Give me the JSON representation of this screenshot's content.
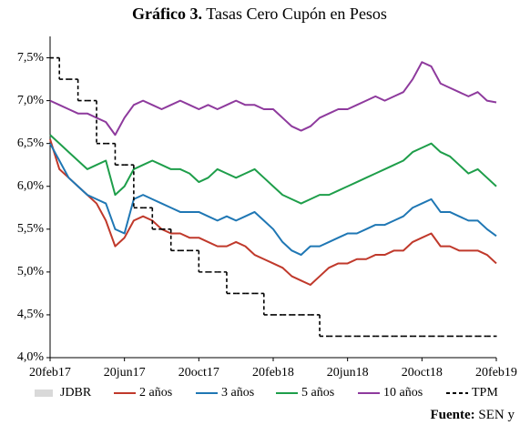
{
  "chart_data": {
    "type": "line",
    "title_label": "Gráfico 3.",
    "title": "Tasas Cero Cupón en Pesos",
    "source_label": "Fuente:",
    "source": "SEN y",
    "categories": [
      "20feb17",
      null,
      null,
      null,
      null,
      null,
      null,
      null,
      "20jun17",
      null,
      null,
      null,
      null,
      null,
      null,
      null,
      "20oct17",
      null,
      null,
      null,
      null,
      null,
      null,
      null,
      "20feb18",
      null,
      null,
      null,
      null,
      null,
      null,
      null,
      "20jun18",
      null,
      null,
      null,
      null,
      null,
      null,
      null,
      "20oct18",
      null,
      null,
      null,
      null,
      null,
      null,
      null,
      "20feb19"
    ],
    "ylim": [
      4,
      7.75
    ],
    "yticks": [
      {
        "value": 4,
        "label": "4,0%"
      },
      {
        "value": 4.5,
        "label": "4,5%"
      },
      {
        "value": 5,
        "label": "5,0%"
      },
      {
        "value": 5.5,
        "label": "5,5%"
      },
      {
        "value": 6,
        "label": "6,0%"
      },
      {
        "value": 6.5,
        "label": "6,5%"
      },
      {
        "value": 7,
        "label": "7,0%"
      },
      {
        "value": 7.5,
        "label": "7,5%"
      }
    ],
    "series": [
      {
        "name": "JDBR",
        "color": "#d9d9d9",
        "values": [
          null,
          null,
          null,
          null,
          null,
          null,
          null,
          null,
          null,
          null,
          null,
          null,
          null,
          null,
          null,
          null,
          null,
          null,
          null,
          null,
          null,
          null,
          null,
          null,
          null,
          null,
          null,
          null,
          null,
          null,
          null,
          null,
          null,
          null,
          null,
          null,
          null,
          null,
          null,
          null,
          null,
          null,
          null,
          null,
          null,
          null,
          null,
          null,
          null
        ]
      },
      {
        "name": "2 años",
        "color": "#c0392b",
        "values": [
          6.55,
          6.2,
          6.1,
          6.0,
          5.9,
          5.8,
          5.6,
          5.3,
          5.4,
          5.6,
          5.65,
          5.6,
          5.5,
          5.45,
          5.45,
          5.4,
          5.4,
          5.35,
          5.3,
          5.3,
          5.35,
          5.3,
          5.2,
          5.15,
          5.1,
          5.05,
          4.95,
          4.9,
          4.85,
          4.95,
          5.05,
          5.1,
          5.1,
          5.15,
          5.15,
          5.2,
          5.2,
          5.25,
          5.25,
          5.35,
          5.4,
          5.45,
          5.3,
          5.3,
          5.25,
          5.25,
          5.25,
          5.2,
          5.1
        ]
      },
      {
        "name": "3 años",
        "color": "#1f77b4",
        "values": [
          6.5,
          6.3,
          6.1,
          6.0,
          5.9,
          5.85,
          5.8,
          5.5,
          5.45,
          5.85,
          5.9,
          5.85,
          5.8,
          5.75,
          5.7,
          5.7,
          5.7,
          5.65,
          5.6,
          5.65,
          5.6,
          5.65,
          5.7,
          5.6,
          5.5,
          5.35,
          5.25,
          5.2,
          5.3,
          5.3,
          5.35,
          5.4,
          5.45,
          5.45,
          5.5,
          5.55,
          5.55,
          5.6,
          5.65,
          5.75,
          5.8,
          5.85,
          5.7,
          5.7,
          5.65,
          5.6,
          5.6,
          5.5,
          5.42
        ]
      },
      {
        "name": "5 años",
        "color": "#1e9e4a",
        "values": [
          6.6,
          6.5,
          6.4,
          6.3,
          6.2,
          6.25,
          6.3,
          5.9,
          6.0,
          6.2,
          6.25,
          6.3,
          6.25,
          6.2,
          6.2,
          6.15,
          6.05,
          6.1,
          6.2,
          6.15,
          6.1,
          6.15,
          6.2,
          6.1,
          6.0,
          5.9,
          5.85,
          5.8,
          5.85,
          5.9,
          5.9,
          5.95,
          6.0,
          6.05,
          6.1,
          6.15,
          6.2,
          6.25,
          6.3,
          6.4,
          6.45,
          6.5,
          6.4,
          6.35,
          6.25,
          6.15,
          6.2,
          6.1,
          6.0
        ]
      },
      {
        "name": "10 años",
        "color": "#8e3a9d",
        "values": [
          7.0,
          6.95,
          6.9,
          6.85,
          6.85,
          6.8,
          6.75,
          6.6,
          6.8,
          6.95,
          7.0,
          6.95,
          6.9,
          6.95,
          7.0,
          6.95,
          6.9,
          6.95,
          6.9,
          6.95,
          7.0,
          6.95,
          6.95,
          6.9,
          6.9,
          6.8,
          6.7,
          6.65,
          6.7,
          6.8,
          6.85,
          6.9,
          6.9,
          6.95,
          7.0,
          7.05,
          7.0,
          7.05,
          7.1,
          7.25,
          7.45,
          7.4,
          7.2,
          7.15,
          7.1,
          7.05,
          7.1,
          7.0,
          6.98
        ]
      },
      {
        "name": "TPM",
        "color": "#000000",
        "step": true,
        "dashed": true,
        "values": [
          7.5,
          7.25,
          7.25,
          7.0,
          7.0,
          6.5,
          6.5,
          6.25,
          6.25,
          5.75,
          5.75,
          5.5,
          5.5,
          5.25,
          5.25,
          5.25,
          5.0,
          5.0,
          5.0,
          4.75,
          4.75,
          4.75,
          4.75,
          4.5,
          4.5,
          4.5,
          4.5,
          4.5,
          4.5,
          4.25,
          4.25,
          4.25,
          4.25,
          4.25,
          4.25,
          4.25,
          4.25,
          4.25,
          4.25,
          4.25,
          4.25,
          4.25,
          4.25,
          4.25,
          4.25,
          4.25,
          4.25,
          4.25,
          4.25
        ]
      }
    ]
  }
}
